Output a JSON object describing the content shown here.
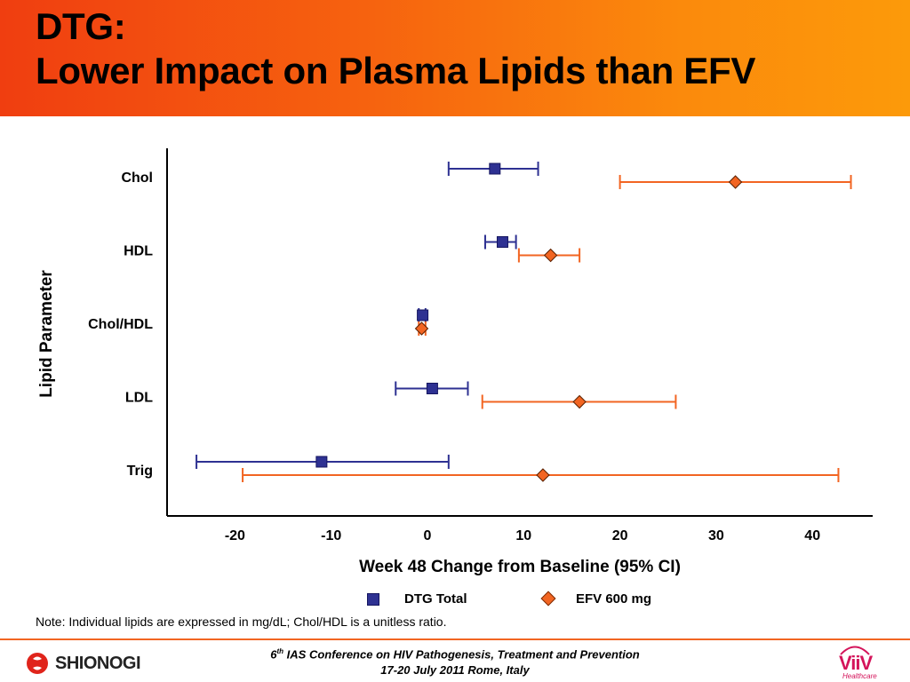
{
  "header": {
    "title_line1": "DTG:",
    "title_line2": "Lower Impact on Plasma Lipids than EFV"
  },
  "chart_data": {
    "type": "scatter",
    "subtype": "forest-plot",
    "title": "",
    "xlabel": "Week 48 Change from Baseline (95% CI)",
    "ylabel": "Lipid Parameter",
    "xlim": [
      -25,
      46
    ],
    "xticks": [
      -20,
      -10,
      0,
      10,
      20,
      30,
      40
    ],
    "xtick_labels": [
      "-20",
      "-10",
      "0",
      "10",
      "20",
      "30",
      "40"
    ],
    "categories": [
      "Chol",
      "HDL",
      "Chol/HDL",
      "LDL",
      "Trig"
    ],
    "grid": false,
    "legend_position": "bottom",
    "series": [
      {
        "name": "DTG Total",
        "marker": "square",
        "color": "#2e3192",
        "values": [
          7,
          7.8,
          -0.5,
          0.5,
          -11
        ],
        "ci_low": [
          2.2,
          6,
          -0.9,
          -3.3,
          -24
        ],
        "ci_high": [
          11.5,
          9.2,
          -0.2,
          4.2,
          2.2
        ]
      },
      {
        "name": "EFV 600 mg",
        "marker": "diamond",
        "color": "#f26522",
        "values": [
          32,
          12.8,
          -0.6,
          15.8,
          12
        ],
        "ci_low": [
          20,
          9.5,
          -0.9,
          5.7,
          -19.2
        ],
        "ci_high": [
          44,
          15.8,
          -0.2,
          25.8,
          42.7
        ]
      }
    ]
  },
  "legend": {
    "dtg_label": "DTG Total",
    "efv_label": "EFV 600 mg"
  },
  "note": "Note: Individual lipids are expressed in mg/dL; Chol/HDL is a unitless ratio.",
  "footer": {
    "conf_ordinal": "6",
    "conf_sup": "th",
    "conf_line1_rest": " IAS Conference on HIV Pathogenesis, Treatment and Prevention",
    "conf_line2": "17-20 July 2011 Rome, Italy",
    "left_logo_text": "SHIONOGI",
    "right_logo_text": "ViiV",
    "right_logo_sub": "Healthcare",
    "accent_color": "#f26522"
  }
}
